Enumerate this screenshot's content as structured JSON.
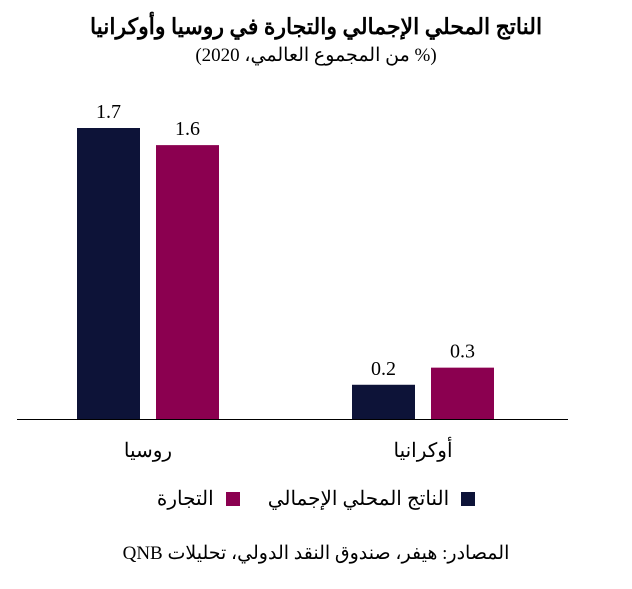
{
  "colors": {
    "gdp": "#0d1338",
    "trade": "#8b0050",
    "axis": "#000000"
  },
  "chart_data": {
    "type": "bar",
    "title": "الناتج المحلي الإجمالي والتجارة في روسيا وأوكرانيا",
    "subtitle": "(% من المجموع العالمي، 2020)",
    "categories": [
      "روسيا",
      "أوكرانيا"
    ],
    "series": [
      {
        "name": "الناتج المحلي الإجمالي",
        "values": [
          1.7,
          0.2
        ],
        "labels": [
          "1.7",
          "0.2"
        ]
      },
      {
        "name": "التجارة",
        "values": [
          1.6,
          0.3
        ],
        "labels": [
          "1.6",
          "0.3"
        ]
      }
    ],
    "ylim": [
      0,
      1.7
    ],
    "grid": false,
    "legend_position": "bottom"
  },
  "source": "المصادر: هيفر، صندوق النقد الدولي، تحليلات QNB"
}
